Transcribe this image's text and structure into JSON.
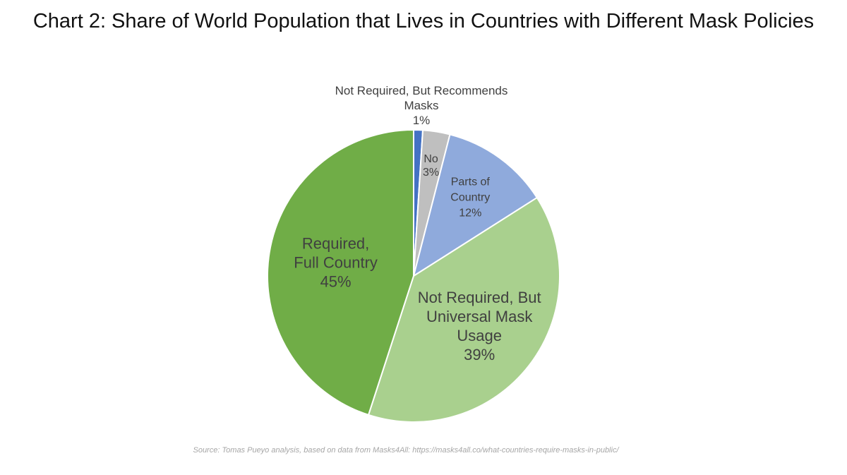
{
  "chart_data": {
    "type": "pie",
    "title": "Chart 2: Share of World Population that Lives in Countries with Different Mask Policies",
    "source": "Source: Tomas Pueyo analysis, based on data from Masks4All: https://masks4all.co/what-countries-require-masks-in-public/",
    "start_angle_deg": 0,
    "direction": "clockwise",
    "slices": [
      {
        "label_lines": [
          "Not Required, But Recommends",
          "Masks"
        ],
        "value": 1,
        "value_label": "1%",
        "color": "#4472c4",
        "label_placement": "outside-top"
      },
      {
        "label_lines": [
          "No"
        ],
        "value": 3,
        "value_label": "3%",
        "color": "#bfbfbf",
        "label_placement": "inside"
      },
      {
        "label_lines": [
          "Parts of",
          "Country"
        ],
        "value": 12,
        "value_label": "12%",
        "color": "#8faadc",
        "label_placement": "inside"
      },
      {
        "label_lines": [
          "Not Required, But",
          "Universal Mask",
          "Usage"
        ],
        "value": 39,
        "value_label": "39%",
        "color": "#a9d08e",
        "label_placement": "inside"
      },
      {
        "label_lines": [
          "Required,",
          "Full Country"
        ],
        "value": 45,
        "value_label": "45%",
        "color": "#70ad47",
        "label_placement": "inside"
      }
    ],
    "colors": {
      "slice_border": "#ffffff",
      "label_text": "#404040"
    }
  }
}
